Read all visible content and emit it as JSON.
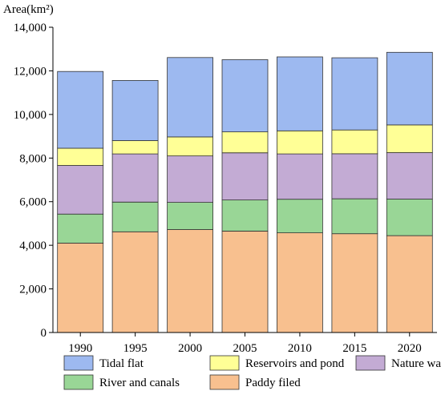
{
  "chart_data": {
    "type": "bar",
    "stacked": true,
    "ylabel": "Area(km²)",
    "xlabel": "",
    "ylim": [
      0,
      14000
    ],
    "yticks": [
      0,
      2000,
      4000,
      6000,
      8000,
      10000,
      12000,
      14000
    ],
    "ytick_labels": [
      "0",
      "2,000",
      "4,000",
      "6,000",
      "8,000",
      "10,000",
      "12,000",
      "14,000"
    ],
    "categories": [
      "1990",
      "1995",
      "2000",
      "2005",
      "2010",
      "2015",
      "2020"
    ],
    "series": [
      {
        "name": "Paddy filed",
        "color": "#f8c08f",
        "values": [
          4100,
          4620,
          4720,
          4650,
          4570,
          4530,
          4440
        ]
      },
      {
        "name": "River and canals",
        "color": "#99d696",
        "values": [
          1330,
          1360,
          1250,
          1430,
          1540,
          1600,
          1680
        ]
      },
      {
        "name": "Nature water",
        "color": "#c3abd4",
        "values": [
          2230,
          2210,
          2130,
          2160,
          2080,
          2070,
          2130
        ]
      },
      {
        "name": "Reservoirs and pond",
        "color": "#ffff96",
        "values": [
          790,
          610,
          870,
          960,
          1060,
          1090,
          1270
        ]
      },
      {
        "name": "Tidal flat",
        "color": "#9db9f0",
        "values": [
          3520,
          2760,
          3640,
          3310,
          3390,
          3310,
          3330
        ]
      }
    ],
    "legend": {
      "position": "bottom",
      "order": [
        "Tidal flat",
        "Reservoirs and pond",
        "Nature water",
        "River and canals",
        "Paddy filed"
      ]
    },
    "grid": false
  }
}
